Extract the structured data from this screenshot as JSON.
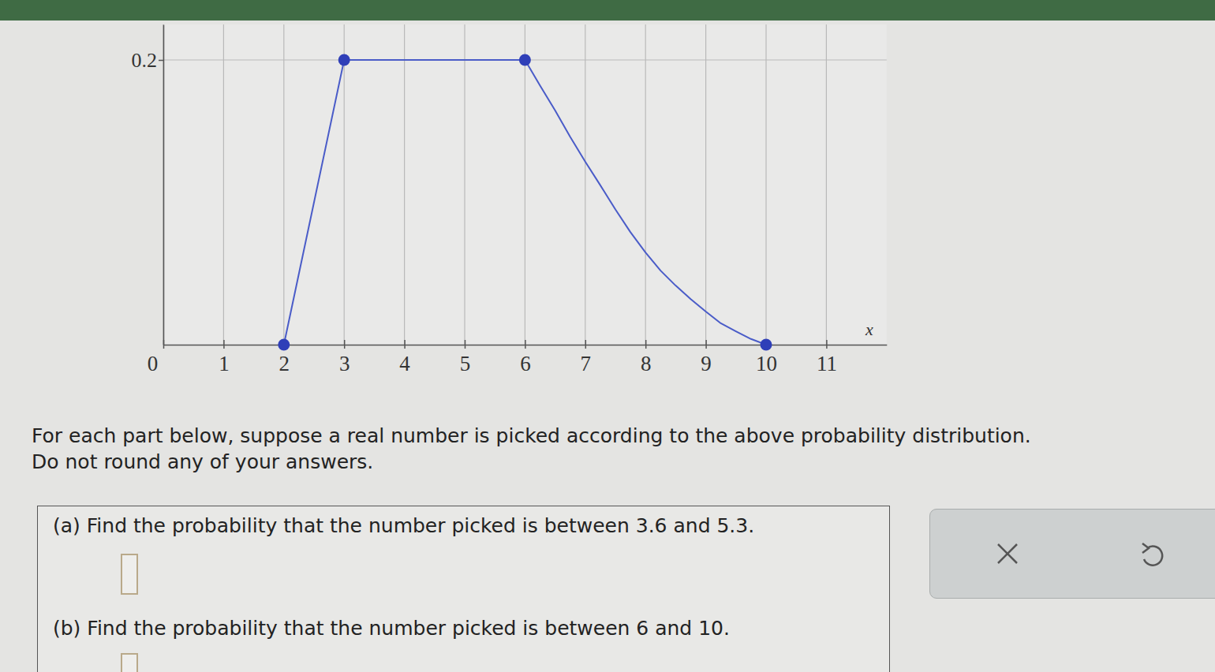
{
  "chart_data": {
    "type": "line",
    "x_label": "x",
    "xlim": [
      0,
      12
    ],
    "ylim": [
      0,
      0.225
    ],
    "xticks": [
      0,
      1,
      2,
      3,
      4,
      5,
      6,
      7,
      8,
      9,
      10,
      11
    ],
    "yticks": [
      0.2
    ],
    "grid": true,
    "series": [
      {
        "type": "scatter",
        "marker": "circle",
        "color": "#2f3fb8",
        "x": [
          2,
          3,
          6,
          10
        ],
        "values": [
          0,
          0.2,
          0.2,
          0
        ]
      },
      {
        "type": "line",
        "marker": "none",
        "color": "#4a5cc8",
        "x": [
          2,
          3,
          6,
          6.25,
          6.5,
          6.75,
          7,
          7.25,
          7.5,
          7.75,
          8,
          8.25,
          8.5,
          8.75,
          9,
          9.25,
          9.5,
          9.75,
          10
        ],
        "values": [
          0,
          0.2,
          0.2,
          0.182,
          0.1645,
          0.146,
          0.1285,
          0.112,
          0.095,
          0.079,
          0.0648,
          0.052,
          0.0415,
          0.032,
          0.0233,
          0.015,
          0.0094,
          0.004,
          0
        ]
      }
    ]
  },
  "instructions": [
    "For each part below, suppose a real number is picked according to the above probability distribution.",
    "Do not round any of your answers."
  ],
  "questions": [
    {
      "text": "(a) Find the probability that the number picked is between 3.6 and 5.3."
    },
    {
      "text": "(b) Find the probability that the number picked is between 6 and 10."
    }
  ]
}
